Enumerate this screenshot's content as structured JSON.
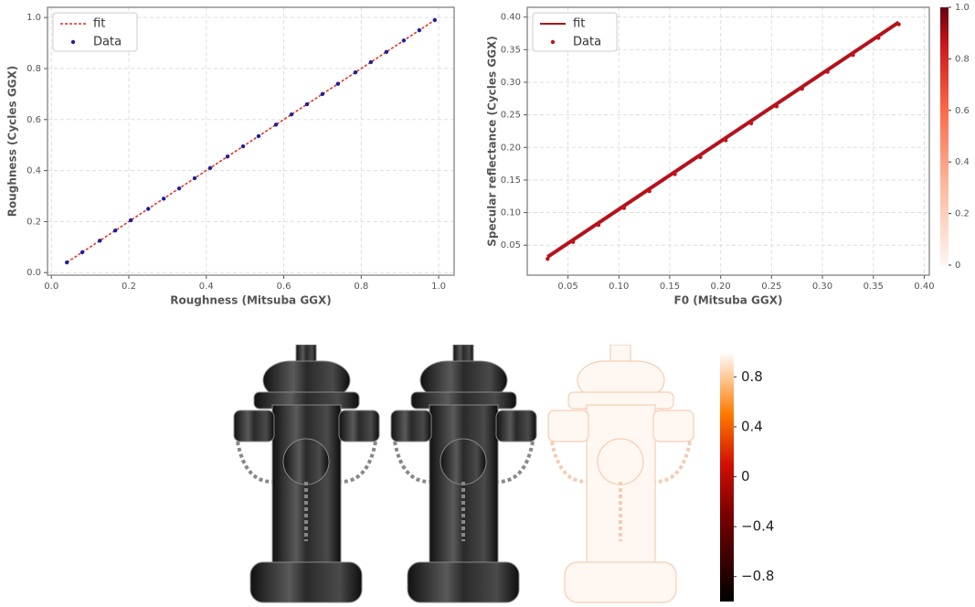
{
  "chart_data": [
    {
      "type": "scatter",
      "xlabel": "Roughness (Mitsuba GGX)",
      "ylabel": "Roughness (Cycles GGX)",
      "xlim": [
        -0.01,
        1.04
      ],
      "ylim": [
        -0.01,
        1.04
      ],
      "xticks": [
        {
          "value": 0,
          "label": "0.0"
        },
        0.2,
        0.4,
        0.6,
        0.8,
        {
          "value": 1,
          "label": "1.0"
        }
      ],
      "yticks": [
        {
          "value": 0,
          "label": "0.0"
        },
        0.2,
        0.4,
        0.6,
        0.8,
        {
          "value": 1,
          "label": "1.0"
        }
      ],
      "grid": true,
      "legend": "upper left",
      "series": [
        {
          "name": "fit",
          "color": "#e8281e",
          "linestyle": "dotted",
          "x": [
            0.04,
            0.99
          ],
          "values": [
            0.04,
            0.99
          ]
        },
        {
          "name": "Data",
          "color": "#1f1f9e",
          "marker": "o",
          "x": [
            0.04,
            0.08,
            0.125,
            0.165,
            0.205,
            0.25,
            0.29,
            0.33,
            0.37,
            0.41,
            0.455,
            0.495,
            0.535,
            0.58,
            0.62,
            0.66,
            0.7,
            0.74,
            0.785,
            0.825,
            0.865,
            0.91,
            0.95,
            0.99
          ],
          "values": [
            0.04,
            0.08,
            0.125,
            0.165,
            0.205,
            0.25,
            0.29,
            0.33,
            0.37,
            0.41,
            0.455,
            0.495,
            0.535,
            0.58,
            0.62,
            0.66,
            0.7,
            0.74,
            0.785,
            0.825,
            0.865,
            0.91,
            0.95,
            0.99
          ]
        }
      ]
    },
    {
      "type": "scatter",
      "xlabel": "F0 (Mitsuba GGX)",
      "ylabel": "Specular reflectance (Cycles GGX)",
      "xlim": [
        0.01,
        0.405
      ],
      "ylim": [
        0.004,
        0.415
      ],
      "xticks": [
        0.05,
        {
          "value": 0.1,
          "label": "0.10"
        },
        0.15,
        {
          "value": 0.2,
          "label": "0.20"
        },
        0.25,
        {
          "value": 0.3,
          "label": "0.30"
        },
        0.35,
        {
          "value": 0.4,
          "label": "0.40"
        }
      ],
      "yticks": [
        0.05,
        {
          "value": 0.1,
          "label": "0.10"
        },
        0.15,
        {
          "value": 0.2,
          "label": "0.20"
        },
        0.25,
        {
          "value": 0.3,
          "label": "0.30"
        },
        0.35,
        {
          "value": 0.4,
          "label": "0.40"
        }
      ],
      "grid": true,
      "legend": "upper left",
      "colorbar": {
        "lim": [
          0,
          1
        ],
        "ticks": [
          0,
          0.2,
          0.4,
          0.6,
          0.8,
          {
            "value": 1,
            "label": "1.0"
          }
        ]
      },
      "series": [
        {
          "name": "fit",
          "color": "#b5121b",
          "linestyle": "solid",
          "x": [
            0.03,
            0.375
          ],
          "values": [
            0.032,
            0.392
          ]
        },
        {
          "name": "Data",
          "color": "#c0141a",
          "marker": "o",
          "x": [
            0.03,
            0.055,
            0.08,
            0.105,
            0.13,
            0.155,
            0.18,
            0.205,
            0.23,
            0.255,
            0.28,
            0.305,
            0.33,
            0.355,
            0.375
          ],
          "values": [
            0.029,
            0.055,
            0.081,
            0.107,
            0.133,
            0.159,
            0.185,
            0.211,
            0.237,
            0.263,
            0.29,
            0.316,
            0.342,
            0.368,
            0.389
          ]
        }
      ]
    },
    {
      "type": "image",
      "colorbar": {
        "lim": [
          -1,
          1
        ],
        "ticks": [
          0.8,
          0.4,
          0,
          {
            "value": -0.4,
            "label": "−0.4"
          },
          {
            "value": -0.8,
            "label": "−0.8"
          }
        ]
      }
    }
  ]
}
